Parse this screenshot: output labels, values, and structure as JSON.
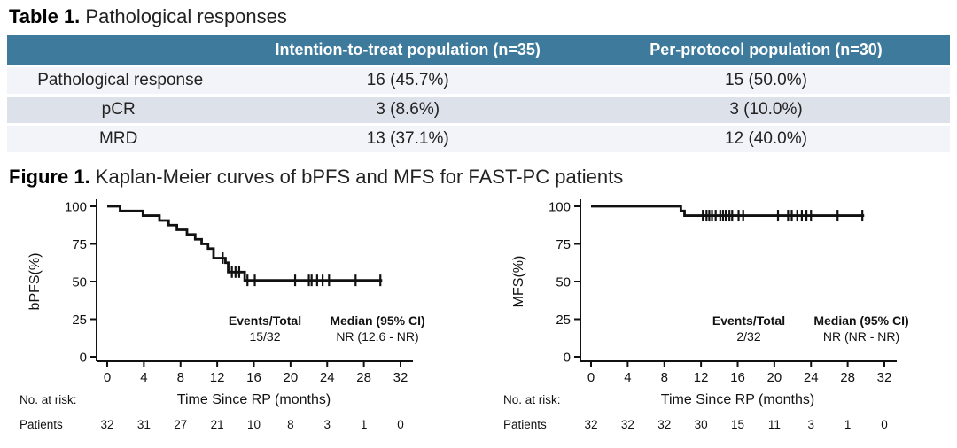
{
  "table": {
    "title_prefix": "Table 1.",
    "title": " Pathological responses",
    "header_bg": "#3e7a9c",
    "header_fg": "#ffffff",
    "row_bg_light": "#f2f4f9",
    "row_bg_dark": "#dde1ea",
    "columns": [
      "",
      "Intention-to-treat population (n=35)",
      "Per-protocol population (n=30)"
    ],
    "rows": [
      {
        "label": "Pathological response",
        "itt": "16 (45.7%)",
        "pp": "15 (50.0%)",
        "indent": false
      },
      {
        "label": "pCR",
        "itt": "3 (8.6%)",
        "pp": "3 (10.0%)",
        "indent": true
      },
      {
        "label": "MRD",
        "itt": "13 (37.1%)",
        "pp": "12 (40.0%)",
        "indent": true
      }
    ]
  },
  "figure": {
    "title_prefix": "Figure 1.",
    "title": " Kaplan-Meier curves of bPFS and MFS for FAST-PC patients"
  },
  "chart_data": [
    {
      "type": "line",
      "subtype": "kaplan-meier-step",
      "ylabel": "bPFS(%)",
      "xlabel": "Time Since RP (months)",
      "xticks": [
        0,
        4,
        8,
        12,
        16,
        20,
        24,
        28,
        32
      ],
      "yticks": [
        0,
        25,
        50,
        75,
        100
      ],
      "xlim": [
        0,
        34
      ],
      "ylim": [
        0,
        100
      ],
      "steps": [
        [
          0,
          100
        ],
        [
          1.4,
          96.9
        ],
        [
          3.9,
          93.8
        ],
        [
          5.7,
          90.6
        ],
        [
          6.7,
          87.5
        ],
        [
          7.6,
          84.4
        ],
        [
          8.7,
          81.3
        ],
        [
          9.6,
          78.1
        ],
        [
          10.3,
          75.0
        ],
        [
          11.0,
          71.9
        ],
        [
          11.6,
          65.6
        ],
        [
          12.9,
          62.5
        ],
        [
          13.2,
          56.3
        ],
        [
          15.0,
          50.8
        ]
      ],
      "end_time": 30,
      "censor_times": [
        12.6,
        13.6,
        14.0,
        14.4,
        15.3,
        16.1,
        20.5,
        22.0,
        22.3,
        22.9,
        23.5,
        24.2,
        27.1,
        29.8
      ],
      "events_total_label": "Events/Total",
      "events_total_value": "15/32",
      "median_label": "Median (95% CI)",
      "median_value": "NR (12.6 - NR)",
      "risk_header": "No. at risk:",
      "risk_row_label": "Patients",
      "risk_values": [
        32,
        31,
        27,
        21,
        10,
        8,
        3,
        1,
        0
      ],
      "line_color": "#111111",
      "grid": false,
      "legend_position": "none"
    },
    {
      "type": "line",
      "subtype": "kaplan-meier-step",
      "ylabel": "MFS(%)",
      "xlabel": "Time Since RP (months)",
      "xticks": [
        0,
        4,
        8,
        12,
        16,
        20,
        24,
        28,
        32
      ],
      "yticks": [
        0,
        25,
        50,
        75,
        100
      ],
      "xlim": [
        0,
        34
      ],
      "ylim": [
        0,
        100
      ],
      "steps": [
        [
          0,
          100
        ],
        [
          9.8,
          96.9
        ],
        [
          10.2,
          93.8
        ]
      ],
      "end_time": 29.8,
      "censor_times": [
        12.2,
        12.6,
        12.9,
        13.2,
        13.6,
        14.1,
        14.4,
        14.7,
        15.1,
        15.4,
        16.1,
        16.6,
        20.4,
        21.5,
        21.9,
        22.5,
        23.0,
        23.5,
        24.0,
        26.9,
        29.6
      ],
      "events_total_label": "Events/Total",
      "events_total_value": "2/32",
      "median_label": "Median (95% CI)",
      "median_value": "NR (NR - NR)",
      "risk_header": "No. at risk:",
      "risk_row_label": "Patients",
      "risk_values": [
        32,
        32,
        32,
        30,
        15,
        11,
        3,
        1,
        0
      ],
      "line_color": "#111111",
      "grid": false,
      "legend_position": "none"
    }
  ]
}
